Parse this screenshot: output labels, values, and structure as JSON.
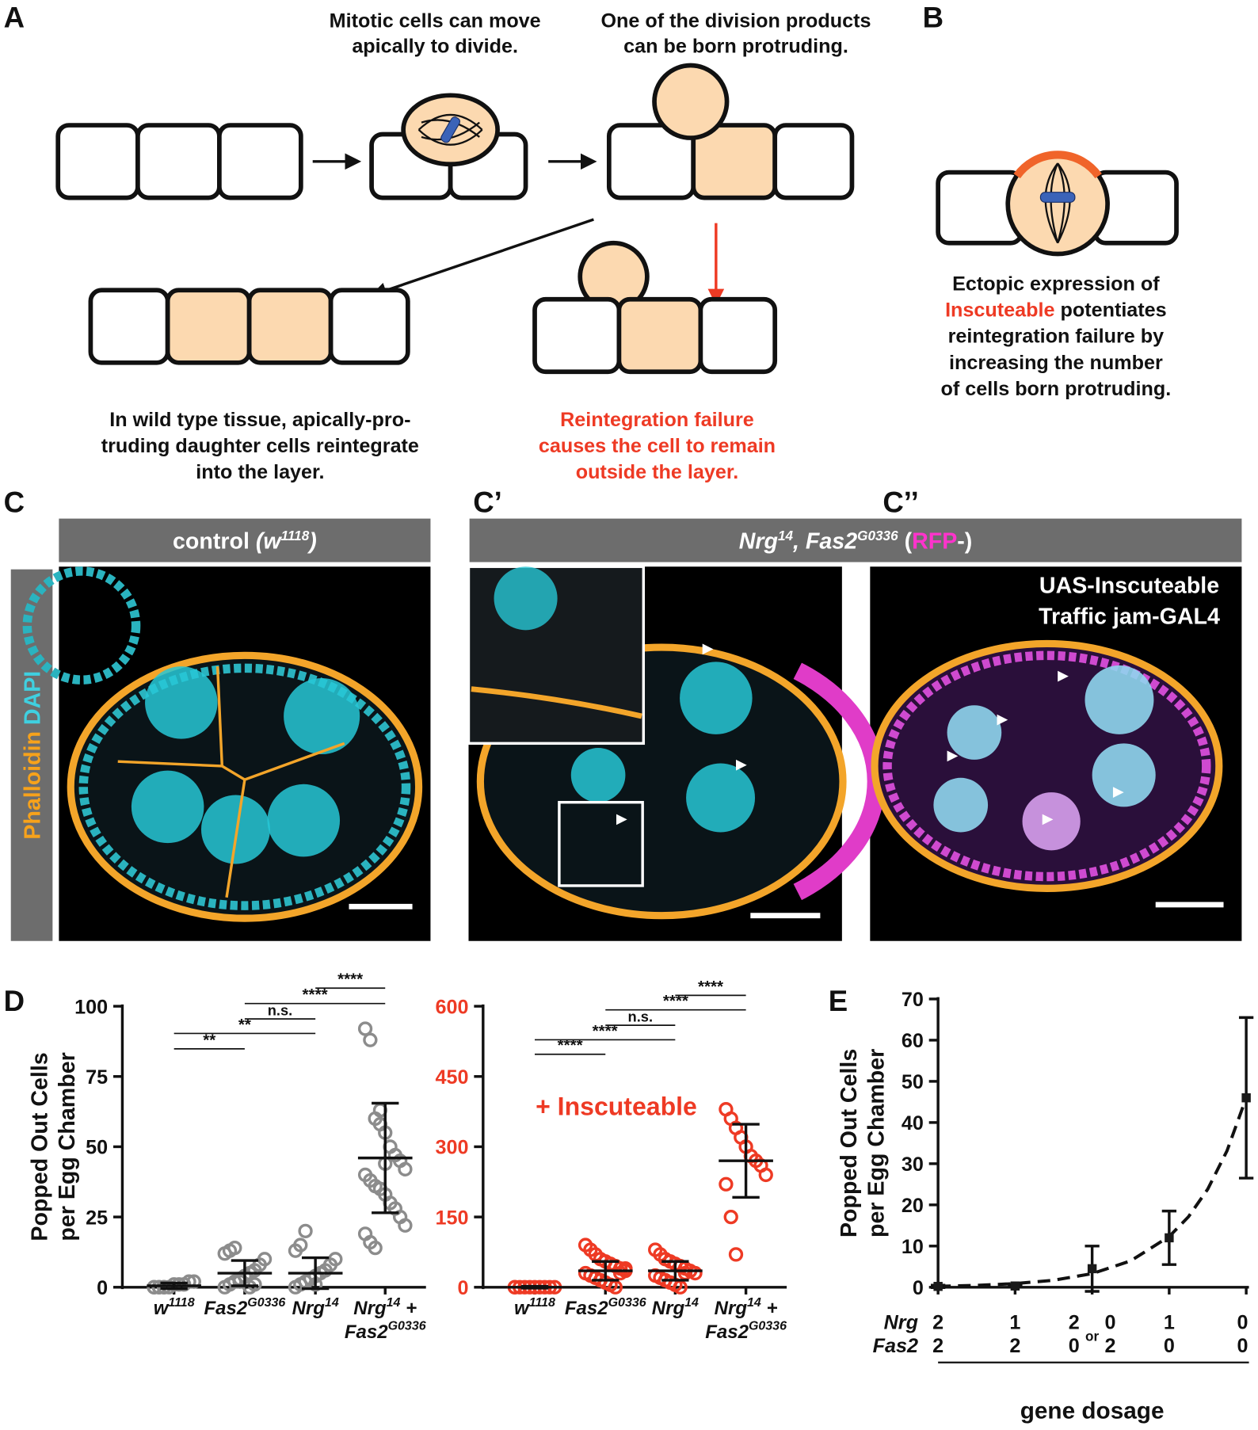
{
  "panel_labels": [
    "A",
    "B",
    "C",
    "C’",
    "C’’",
    "D",
    "E"
  ],
  "panel_a": {
    "step1": [
      "Mitotic cells can move",
      "apically to divide."
    ],
    "step2": [
      "One of the division products",
      "can be born protruding."
    ],
    "outcome_wt": [
      "In wild type tissue, apically-pro-",
      "truding daughter cells reintegrate",
      "into the layer."
    ],
    "outcome_fail": [
      "Reintegration failure",
      "causes the cell to remain",
      "outside the layer."
    ]
  },
  "panel_b": {
    "caption": [
      [
        "Ectopic expression of"
      ],
      [
        "Inscuteable",
        " potentiates"
      ],
      [
        "reintegration failure by"
      ],
      [
        "increasing the number"
      ],
      [
        "of cells born protruding."
      ]
    ]
  },
  "panel_c": {
    "stain": [
      "Phalloidin",
      " DAPI"
    ],
    "control_header": [
      "control ",
      "(w",
      "1118",
      ")"
    ],
    "mutant_header": [
      "Nrg",
      "14",
      ", Fas2",
      "G0336",
      " (",
      "RFP",
      "-)"
    ],
    "overlay": [
      "UAS-Inscuteable",
      "Traffic jam-GAL4"
    ]
  },
  "chart_data": [
    {
      "type": "dot",
      "y_label": [
        "Popped Out Cells",
        "per Egg Chamber"
      ],
      "categories": [
        [
          [
            "w",
            "1118"
          ]
        ],
        [
          [
            "Fas2",
            "G0336"
          ]
        ],
        [
          [
            "Nrg",
            "14"
          ]
        ],
        [
          [
            "Nrg",
            "14",
            " +"
          ],
          [
            "Fas2",
            "G0336"
          ]
        ]
      ],
      "points": [
        [
          0,
          0,
          0,
          0,
          1,
          1,
          1,
          2,
          2,
          0,
          0,
          0
        ],
        [
          0,
          1,
          2,
          3,
          4,
          5,
          6,
          8,
          10,
          12,
          13,
          14,
          2,
          4,
          0,
          1
        ],
        [
          0,
          1,
          2,
          3,
          4,
          5,
          6,
          8,
          10,
          13,
          15,
          20,
          3,
          1
        ],
        [
          92,
          88,
          60,
          63,
          55,
          50,
          47,
          45,
          42,
          40,
          38,
          36,
          35,
          33,
          30,
          28,
          25,
          22,
          19,
          16,
          14,
          58,
          44
        ]
      ],
      "means": [
        0.5,
        5,
        5,
        46
      ],
      "sd": [
        1,
        4.5,
        5.5,
        19.5
      ],
      "color": "#8c8c8c",
      "ylim": [
        0,
        100
      ],
      "yticks": [
        0,
        25,
        50,
        75,
        100
      ],
      "comparisons": [
        {
          "pair": [
            0,
            1
          ],
          "label": "**"
        },
        {
          "pair": [
            0,
            2
          ],
          "label": "**"
        },
        {
          "pair": [
            1,
            2
          ],
          "label": "n.s."
        },
        {
          "pair": [
            1,
            3
          ],
          "label": "****"
        },
        {
          "pair": [
            2,
            3
          ],
          "label": "****"
        }
      ]
    },
    {
      "type": "dot",
      "annotation": "+ Inscuteable",
      "categories": [
        [
          [
            "w",
            "1118"
          ]
        ],
        [
          [
            "Fas2",
            "G0336"
          ]
        ],
        [
          [
            "Nrg",
            "14"
          ]
        ],
        [
          [
            "Nrg",
            "14",
            " +"
          ],
          [
            "Fas2",
            "G0336"
          ]
        ]
      ],
      "points": [
        [
          0,
          0,
          0,
          0,
          0,
          0,
          0,
          0,
          0,
          0
        ],
        [
          90,
          80,
          70,
          60,
          55,
          50,
          45,
          40,
          35,
          30,
          25,
          20,
          15,
          10,
          5,
          0,
          30,
          40
        ],
        [
          80,
          70,
          60,
          55,
          50,
          45,
          40,
          35,
          30,
          25,
          20,
          15,
          10,
          5,
          0,
          30
        ],
        [
          380,
          360,
          340,
          320,
          300,
          280,
          270,
          260,
          240,
          220,
          150,
          70
        ]
      ],
      "means": [
        0,
        35,
        35,
        270
      ],
      "sd": [
        2,
        20,
        20,
        78
      ],
      "color": "#ee3a24",
      "tick_color": "#ee3a24",
      "ylim": [
        0,
        600
      ],
      "yticks": [
        0,
        150,
        300,
        450,
        600
      ],
      "comparisons": [
        {
          "pair": [
            0,
            1
          ],
          "label": "****"
        },
        {
          "pair": [
            0,
            2
          ],
          "label": "****"
        },
        {
          "pair": [
            1,
            2
          ],
          "label": "n.s."
        },
        {
          "pair": [
            1,
            3
          ],
          "label": "****"
        },
        {
          "pair": [
            2,
            3
          ],
          "label": "****"
        }
      ]
    },
    {
      "type": "scatter",
      "y_label": [
        "Popped Out Cells",
        "per Egg Chamber"
      ],
      "x": [
        0,
        1,
        2,
        3,
        4
      ],
      "values": [
        0.2,
        0.3,
        4.5,
        12,
        46
      ],
      "errors": [
        0.3,
        0.3,
        5.5,
        6.5,
        19.5
      ],
      "color": "#1a1a1a",
      "xlim": [
        0,
        4
      ],
      "ylim": [
        0,
        70
      ],
      "yticks": [
        0,
        10,
        20,
        30,
        40,
        50,
        60,
        70
      ],
      "fit": {
        "x": [
          0,
          0.5,
          1,
          1.5,
          2,
          2.5,
          3,
          3.25,
          3.5,
          3.75,
          4
        ],
        "y": [
          0.23,
          0.45,
          0.88,
          1.7,
          3.3,
          6.4,
          12.3,
          17.1,
          23.8,
          33.1,
          46
        ]
      },
      "row_names": [
        "Nrg",
        "Fas2"
      ],
      "nrg_labels": [
        "2",
        "1",
        [
          "2",
          "0"
        ],
        "1",
        "0"
      ],
      "fas2_labels": [
        "2",
        "2",
        [
          "0",
          "2"
        ],
        "0",
        "0"
      ],
      "or_label": "or",
      "x_label": "gene dosage"
    }
  ]
}
